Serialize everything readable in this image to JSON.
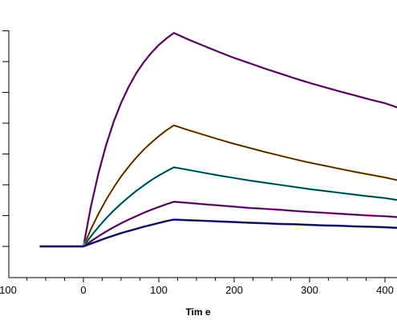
{
  "chart_data": {
    "type": "line",
    "title": "",
    "xlabel": "Tim e",
    "ylabel": "",
    "xlim": [
      -110,
      425
    ],
    "ylim": [
      -1.3,
      7
    ],
    "xticks": [
      -100,
      0,
      100,
      200,
      300,
      400
    ],
    "xtick_labels": [
      "100",
      "0",
      "100",
      "200",
      "300",
      "400"
    ],
    "yticks": [
      0,
      1,
      2,
      3,
      4,
      5,
      6,
      7
    ],
    "grid": false,
    "legend": "none",
    "series": [
      {
        "color": "#c040c8",
        "fit_color": "#000000",
        "x": [
          -58,
          -40,
          -20,
          0,
          10,
          20,
          30,
          40,
          50,
          60,
          70,
          80,
          90,
          100,
          110,
          120,
          140,
          160,
          180,
          200,
          220,
          240,
          260,
          280,
          300,
          320,
          340,
          360,
          380,
          400,
          425
        ],
        "y": [
          0,
          0,
          0,
          0,
          1.3,
          2.38,
          3.28,
          4.04,
          4.66,
          5.18,
          5.62,
          5.98,
          6.28,
          6.54,
          6.75,
          6.93,
          6.71,
          6.51,
          6.31,
          6.12,
          5.95,
          5.78,
          5.62,
          5.46,
          5.31,
          5.17,
          5.03,
          4.9,
          4.77,
          4.65,
          4.5
        ]
      },
      {
        "color": "#e0a040",
        "fit_color": "#000000",
        "x": [
          -58,
          -40,
          -20,
          0,
          10,
          20,
          30,
          40,
          50,
          60,
          70,
          80,
          90,
          100,
          110,
          120,
          140,
          160,
          180,
          200,
          220,
          240,
          260,
          280,
          300,
          320,
          340,
          360,
          380,
          400,
          425
        ],
        "y": [
          0,
          0,
          0,
          0,
          0.56,
          1.06,
          1.51,
          1.91,
          2.27,
          2.59,
          2.88,
          3.14,
          3.37,
          3.58,
          3.77,
          3.93,
          3.77,
          3.62,
          3.47,
          3.33,
          3.2,
          3.07,
          2.95,
          2.83,
          2.72,
          2.62,
          2.52,
          2.42,
          2.33,
          2.24,
          2.14
        ]
      },
      {
        "color": "#30c8d0",
        "fit_color": "#000000",
        "x": [
          -58,
          -40,
          -20,
          0,
          10,
          20,
          30,
          40,
          50,
          60,
          70,
          80,
          90,
          100,
          110,
          120,
          140,
          160,
          180,
          200,
          220,
          240,
          260,
          280,
          300,
          320,
          340,
          360,
          380,
          400,
          425
        ],
        "y": [
          0,
          0,
          0,
          0,
          0.33,
          0.63,
          0.91,
          1.16,
          1.39,
          1.6,
          1.8,
          1.98,
          2.15,
          2.3,
          2.44,
          2.57,
          2.48,
          2.39,
          2.3,
          2.22,
          2.14,
          2.07,
          2.0,
          1.93,
          1.86,
          1.8,
          1.74,
          1.68,
          1.62,
          1.57,
          1.5
        ]
      },
      {
        "color": "#c040c8",
        "fit_color": "#000000",
        "x": [
          -58,
          -40,
          -20,
          0,
          10,
          20,
          30,
          40,
          50,
          60,
          70,
          80,
          90,
          100,
          110,
          120,
          140,
          160,
          180,
          200,
          220,
          240,
          260,
          280,
          300,
          320,
          340,
          360,
          380,
          400,
          425
        ],
        "y": [
          0,
          0,
          0,
          0,
          0.17,
          0.33,
          0.48,
          0.62,
          0.75,
          0.87,
          0.98,
          1.09,
          1.19,
          1.28,
          1.37,
          1.45,
          1.41,
          1.37,
          1.33,
          1.29,
          1.25,
          1.22,
          1.19,
          1.15,
          1.12,
          1.09,
          1.06,
          1.03,
          1.0,
          0.98,
          0.95
        ]
      },
      {
        "color": "#3030b0",
        "fit_color": "#000000",
        "x": [
          -58,
          -40,
          -20,
          0,
          10,
          20,
          30,
          40,
          50,
          60,
          70,
          80,
          90,
          100,
          110,
          120,
          140,
          160,
          180,
          200,
          220,
          240,
          260,
          280,
          300,
          320,
          340,
          360,
          380,
          400,
          425
        ],
        "y": [
          0,
          0,
          0,
          0,
          0.09,
          0.18,
          0.27,
          0.35,
          0.43,
          0.5,
          0.57,
          0.64,
          0.7,
          0.76,
          0.82,
          0.87,
          0.85,
          0.83,
          0.81,
          0.79,
          0.77,
          0.75,
          0.73,
          0.72,
          0.7,
          0.68,
          0.67,
          0.65,
          0.64,
          0.62,
          0.6
        ]
      }
    ]
  }
}
